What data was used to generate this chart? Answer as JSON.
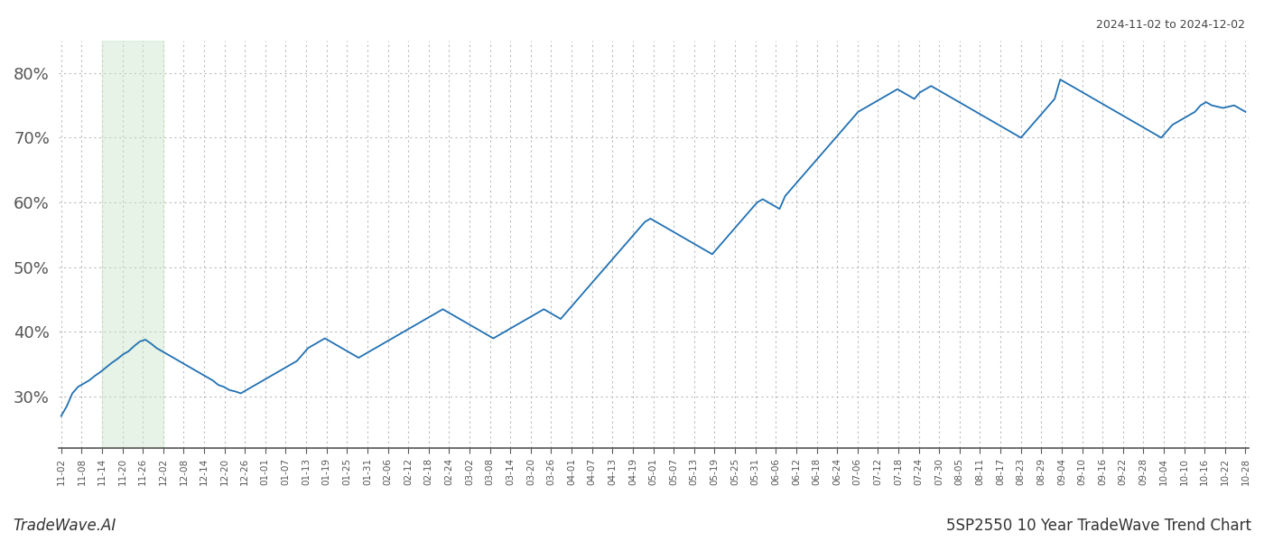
{
  "title_date_range": "2024-11-02 to 2024-12-02",
  "bottom_left_text": "TradeWave.AI",
  "bottom_right_text": "5SP2550 10 Year TradeWave Trend Chart",
  "line_color": "#2271b3",
  "line_width": 1.3,
  "background_color": "#ffffff",
  "grid_color": "#bbbbbb",
  "grid_linestyle": "dotted",
  "green_shade_color": "#c8e6c9",
  "green_shade_alpha": 0.45,
  "ylim": [
    22,
    85
  ],
  "yticks": [
    30,
    40,
    50,
    60,
    70,
    80
  ],
  "xtick_labels": [
    "11-02",
    "11-08",
    "11-14",
    "11-20",
    "11-26",
    "12-02",
    "12-08",
    "12-14",
    "12-20",
    "12-26",
    "01-01",
    "01-07",
    "01-13",
    "01-19",
    "01-25",
    "01-31",
    "02-06",
    "02-12",
    "02-18",
    "02-24",
    "03-02",
    "03-08",
    "03-14",
    "03-20",
    "03-26",
    "04-01",
    "04-07",
    "04-13",
    "04-19",
    "05-01",
    "05-07",
    "05-13",
    "05-19",
    "05-25",
    "05-31",
    "06-06",
    "06-12",
    "06-18",
    "06-24",
    "07-06",
    "07-12",
    "07-18",
    "07-24",
    "07-30",
    "08-05",
    "08-11",
    "08-17",
    "08-23",
    "08-29",
    "09-04",
    "09-10",
    "09-16",
    "09-22",
    "09-28",
    "10-04",
    "10-10",
    "10-16",
    "10-22",
    "10-28"
  ],
  "green_shade_label_start": "11-14",
  "green_shade_label_end": "12-02",
  "values": [
    27.0,
    28.5,
    30.5,
    31.5,
    32.0,
    32.5,
    33.2,
    33.8,
    34.5,
    35.2,
    35.8,
    36.5,
    37.0,
    37.8,
    38.5,
    38.8,
    38.2,
    37.5,
    37.0,
    36.5,
    36.0,
    35.5,
    35.0,
    34.5,
    34.0,
    33.5,
    33.0,
    32.5,
    31.8,
    31.5,
    31.0,
    30.8,
    30.5,
    31.0,
    31.5,
    32.0,
    32.5,
    33.0,
    33.5,
    34.0,
    34.5,
    35.0,
    35.5,
    36.5,
    37.5,
    38.0,
    38.5,
    39.0,
    38.5,
    38.0,
    37.5,
    37.0,
    36.5,
    36.0,
    36.5,
    37.0,
    37.5,
    38.0,
    38.5,
    39.0,
    39.5,
    40.0,
    40.5,
    41.0,
    41.5,
    42.0,
    42.5,
    43.0,
    43.5,
    43.0,
    42.5,
    42.0,
    41.5,
    41.0,
    40.5,
    40.0,
    39.5,
    39.0,
    39.5,
    40.0,
    40.5,
    41.0,
    41.5,
    42.0,
    42.5,
    43.0,
    43.5,
    43.0,
    42.5,
    42.0,
    43.0,
    44.0,
    45.0,
    46.0,
    47.0,
    48.0,
    49.0,
    50.0,
    51.0,
    52.0,
    53.0,
    54.0,
    55.0,
    56.0,
    57.0,
    57.5,
    57.0,
    56.5,
    56.0,
    55.5,
    55.0,
    54.5,
    54.0,
    53.5,
    53.0,
    52.5,
    52.0,
    53.0,
    54.0,
    55.0,
    56.0,
    57.0,
    58.0,
    59.0,
    60.0,
    60.5,
    60.0,
    59.5,
    59.0,
    61.0,
    62.0,
    63.0,
    64.0,
    65.0,
    66.0,
    67.0,
    68.0,
    69.0,
    70.0,
    71.0,
    72.0,
    73.0,
    74.0,
    74.5,
    75.0,
    75.5,
    76.0,
    76.5,
    77.0,
    77.5,
    77.0,
    76.5,
    76.0,
    77.0,
    77.5,
    78.0,
    77.5,
    77.0,
    76.5,
    76.0,
    75.5,
    75.0,
    74.5,
    74.0,
    73.5,
    73.0,
    72.5,
    72.0,
    71.5,
    71.0,
    70.5,
    70.0,
    71.0,
    72.0,
    73.0,
    74.0,
    75.0,
    76.0,
    79.0,
    78.5,
    78.0,
    77.5,
    77.0,
    76.5,
    76.0,
    75.5,
    75.0,
    74.5,
    74.0,
    73.5,
    73.0,
    72.5,
    72.0,
    71.5,
    71.0,
    70.5,
    70.0,
    71.0,
    72.0,
    72.5,
    73.0,
    73.5,
    74.0,
    75.0,
    75.5,
    75.0,
    74.8,
    74.6,
    74.8,
    75.0,
    74.5,
    74.0
  ]
}
